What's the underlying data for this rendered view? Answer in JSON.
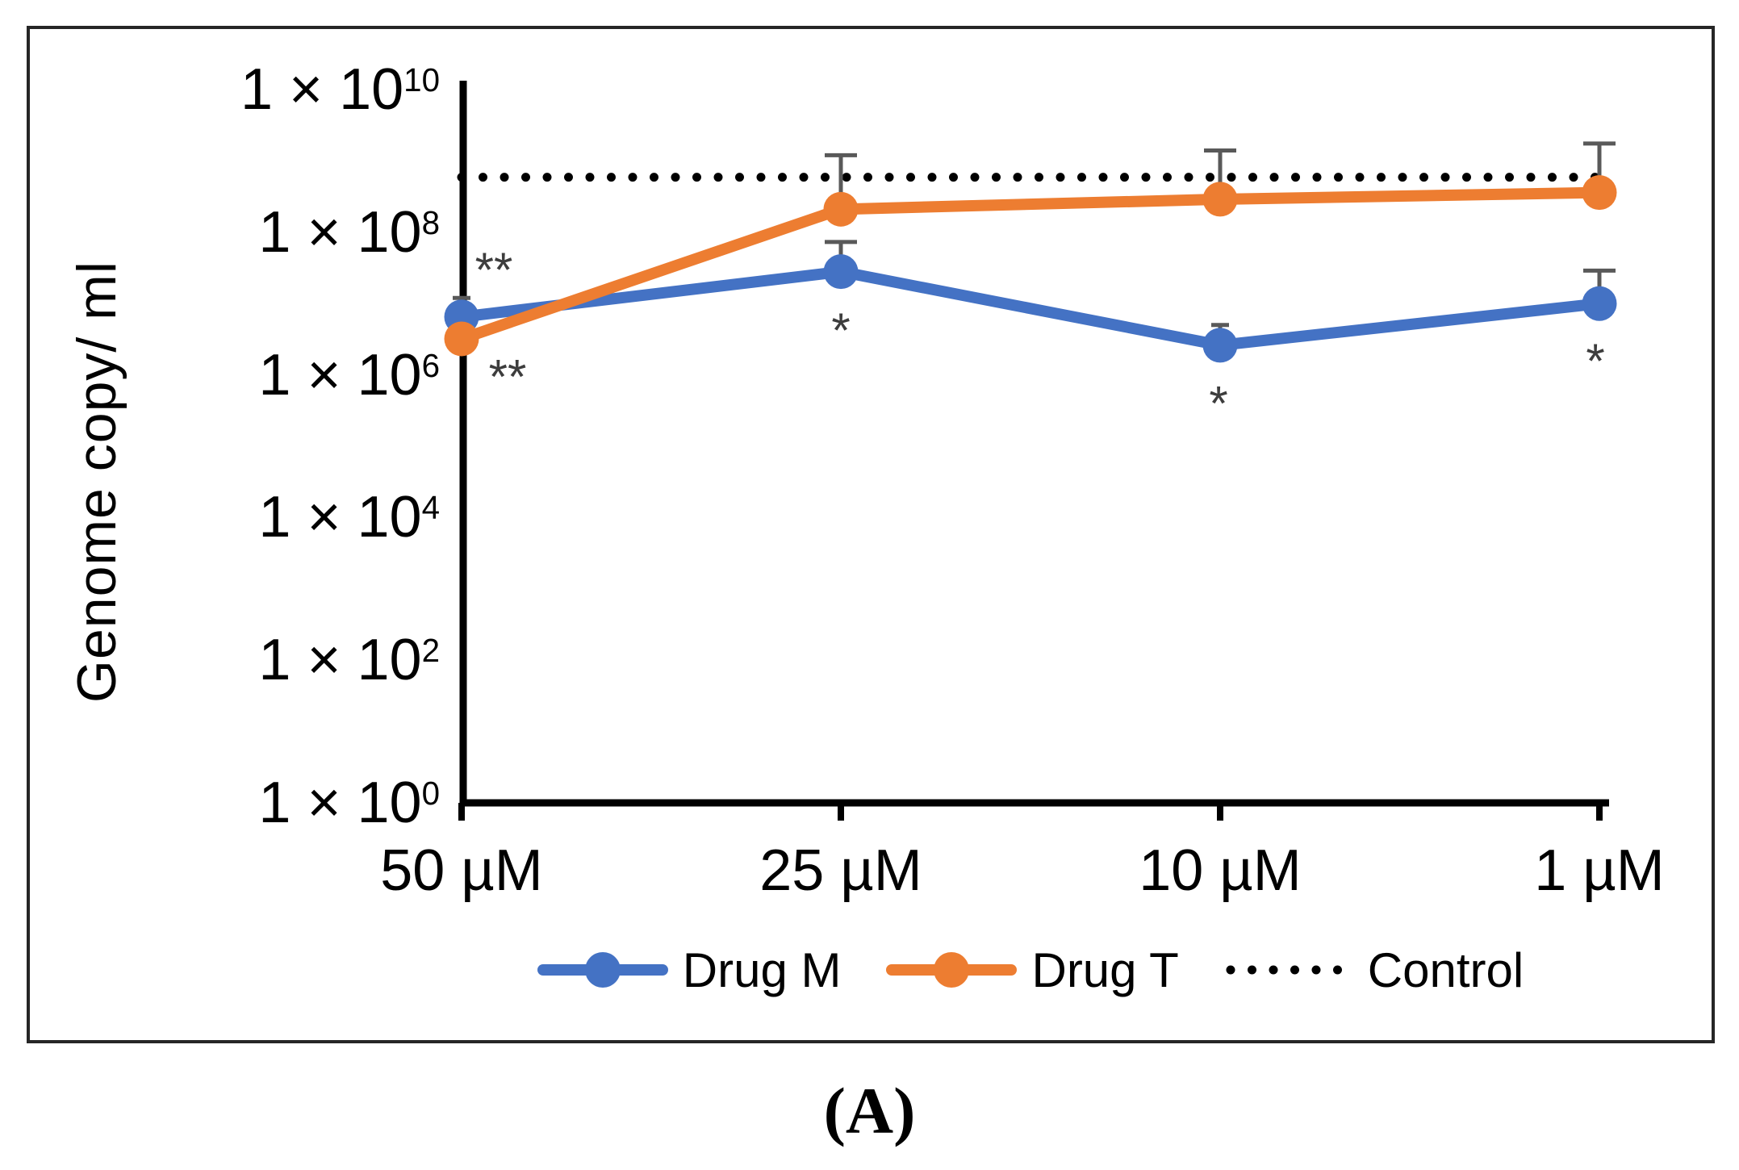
{
  "caption": "(A)",
  "chart_data": {
    "type": "line",
    "title": "",
    "ylabel": "Genome copy/ ml",
    "xlabel": "",
    "categories": [
      "50 µM",
      "25 µM",
      "10 µM",
      "1 µM"
    ],
    "y_axis": {
      "scale": "log10",
      "tick_prefix": "1 × 10",
      "tick_exponents": [
        10,
        8,
        6,
        4,
        2,
        0
      ],
      "ylim": [
        1,
        10000000000.0
      ],
      "grid": false
    },
    "series": [
      {
        "name": "Drug M",
        "color": "#4472C4",
        "values": [
          6500000.0,
          28000000.0,
          2600000.0,
          10000000.0
        ],
        "error_top": [
          12000000.0,
          73000000.0,
          5000000.0,
          29000000.0
        ]
      },
      {
        "name": "Drug T",
        "color": "#ED7D31",
        "values": [
          3200000.0,
          210000000.0,
          290000000.0,
          360000000.0
        ],
        "error_top": [
          null,
          1200000000.0,
          1400000000.0,
          1750000000.0
        ]
      }
    ],
    "control": {
      "name": "Control",
      "value": 590000000.0,
      "line_style": "dotted",
      "color": "#000000"
    },
    "annotations": [
      {
        "category_index": 0,
        "text": "**",
        "value": 38000000.0,
        "dx": 40
      },
      {
        "category_index": 0,
        "text": "**",
        "value": 1200000.0,
        "dx": 57
      },
      {
        "category_index": 1,
        "text": "*",
        "value": 5400000.0,
        "dx": 0
      },
      {
        "category_index": 2,
        "text": "*",
        "value": 510000.0,
        "dx": -2
      },
      {
        "category_index": 3,
        "text": "*",
        "value": 2000000.0,
        "dx": -5
      }
    ],
    "error_bar_color": "#595959",
    "annotation_color": "#3d3d3d",
    "legend_entries": [
      "Drug M",
      "Drug T",
      "Control"
    ],
    "legend_position": "bottom"
  }
}
